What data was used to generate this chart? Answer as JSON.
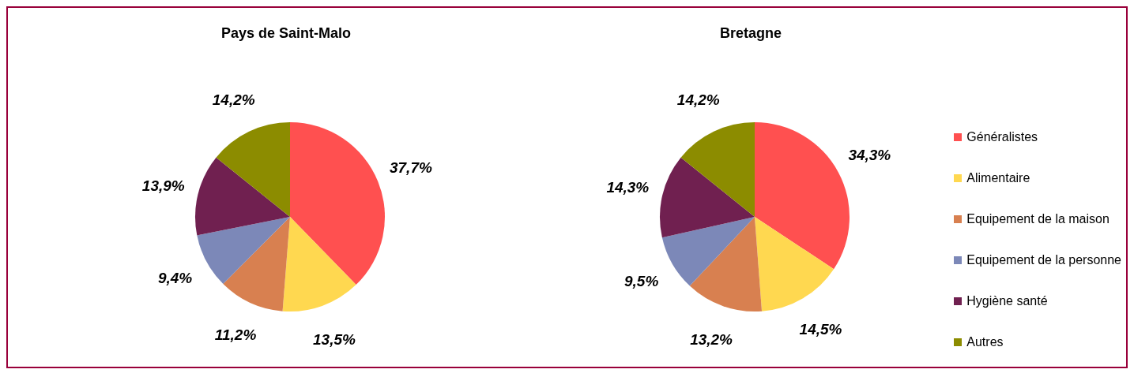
{
  "chart_data": [
    {
      "type": "pie",
      "title": "Pays de Saint-Malo",
      "categories": [
        null,
        null,
        null,
        null,
        null,
        null
      ],
      "values": [
        37.7,
        13.5,
        11.2,
        9.4,
        13.9,
        14.2
      ],
      "value_labels": [
        "37,7%",
        "13,5%",
        "11,2%",
        "9,4%",
        "13,9%",
        "14,2%"
      ],
      "colors": [
        "#ff5050",
        "#ffd850",
        "#d88050",
        "#7c88b8",
        "#702050",
        "#8c8c00"
      ]
    },
    {
      "type": "pie",
      "title": "Bretagne",
      "categories": [
        "Généralistes",
        "Alimentaire",
        "Equipement de la maison",
        "Equipement de la personne",
        "Hygiène santé",
        "Autres"
      ],
      "values": [
        34.3,
        14.5,
        13.2,
        9.5,
        14.3,
        14.2
      ],
      "value_labels": [
        "34,3%",
        "14,5%",
        "13,2%",
        "9,5%",
        "14,3%",
        "14,2%"
      ],
      "colors": [
        "#ff5050",
        "#ffd850",
        "#d88050",
        "#7c88b8",
        "#702050",
        "#8c8c00"
      ],
      "legend": "right"
    }
  ]
}
